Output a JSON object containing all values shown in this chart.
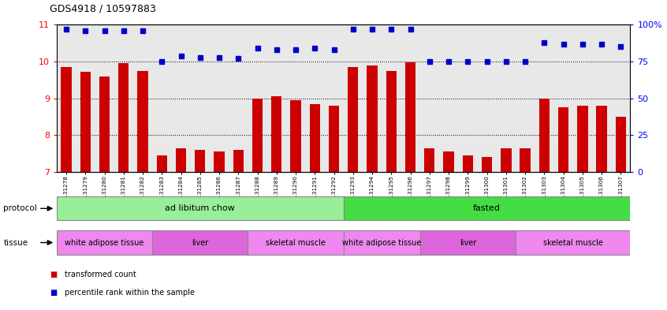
{
  "title": "GDS4918 / 10597883",
  "samples": [
    "GSM1131278",
    "GSM1131279",
    "GSM1131280",
    "GSM1131281",
    "GSM1131282",
    "GSM1131283",
    "GSM1131284",
    "GSM1131285",
    "GSM1131286",
    "GSM1131287",
    "GSM1131288",
    "GSM1131289",
    "GSM1131290",
    "GSM1131291",
    "GSM1131292",
    "GSM1131293",
    "GSM1131294",
    "GSM1131295",
    "GSM1131296",
    "GSM1131297",
    "GSM1131298",
    "GSM1131299",
    "GSM1131300",
    "GSM1131301",
    "GSM1131302",
    "GSM1131303",
    "GSM1131304",
    "GSM1131305",
    "GSM1131306",
    "GSM1131307"
  ],
  "bar_values": [
    9.85,
    9.72,
    9.6,
    9.95,
    9.75,
    7.45,
    7.65,
    7.6,
    7.55,
    7.6,
    9.0,
    9.05,
    8.95,
    8.85,
    8.8,
    9.85,
    9.9,
    9.75,
    9.98,
    7.65,
    7.55,
    7.45,
    7.4,
    7.65,
    7.65,
    9.0,
    8.75,
    8.8,
    8.8,
    8.5
  ],
  "percentile_values": [
    97,
    96,
    96,
    96,
    96,
    75,
    79,
    78,
    78,
    77,
    84,
    83,
    83,
    84,
    83,
    97,
    97,
    97,
    97,
    75,
    75,
    75,
    75,
    75,
    75,
    88,
    87,
    87,
    87,
    85
  ],
  "bar_color": "#cc0000",
  "dot_color": "#0000cc",
  "col_bg_odd": "#d8d8d8",
  "col_bg_even": "#e8e8e8",
  "ylim_left": [
    7,
    11
  ],
  "ylim_right": [
    0,
    100
  ],
  "yticks_left": [
    7,
    8,
    9,
    10,
    11
  ],
  "yticks_right": [
    0,
    25,
    50,
    75,
    100
  ],
  "ytick_labels_right": [
    "0",
    "25",
    "50",
    "75",
    "100%"
  ],
  "protocol_groups": [
    {
      "label": "ad libitum chow",
      "start": 0,
      "end": 15,
      "color": "#99ee99"
    },
    {
      "label": "fasted",
      "start": 15,
      "end": 30,
      "color": "#44dd44"
    }
  ],
  "tissue_groups": [
    {
      "label": "white adipose tissue",
      "start": 0,
      "end": 5,
      "color": "#ee88ee"
    },
    {
      "label": "liver",
      "start": 5,
      "end": 10,
      "color": "#dd66dd"
    },
    {
      "label": "skeletal muscle",
      "start": 10,
      "end": 15,
      "color": "#ee88ee"
    },
    {
      "label": "white adipose tissue",
      "start": 15,
      "end": 19,
      "color": "#ee88ee"
    },
    {
      "label": "liver",
      "start": 19,
      "end": 24,
      "color": "#dd66dd"
    },
    {
      "label": "skeletal muscle",
      "start": 24,
      "end": 30,
      "color": "#ee88ee"
    }
  ],
  "legend_items": [
    {
      "label": "transformed count",
      "color": "#cc0000"
    },
    {
      "label": "percentile rank within the sample",
      "color": "#0000cc"
    }
  ]
}
